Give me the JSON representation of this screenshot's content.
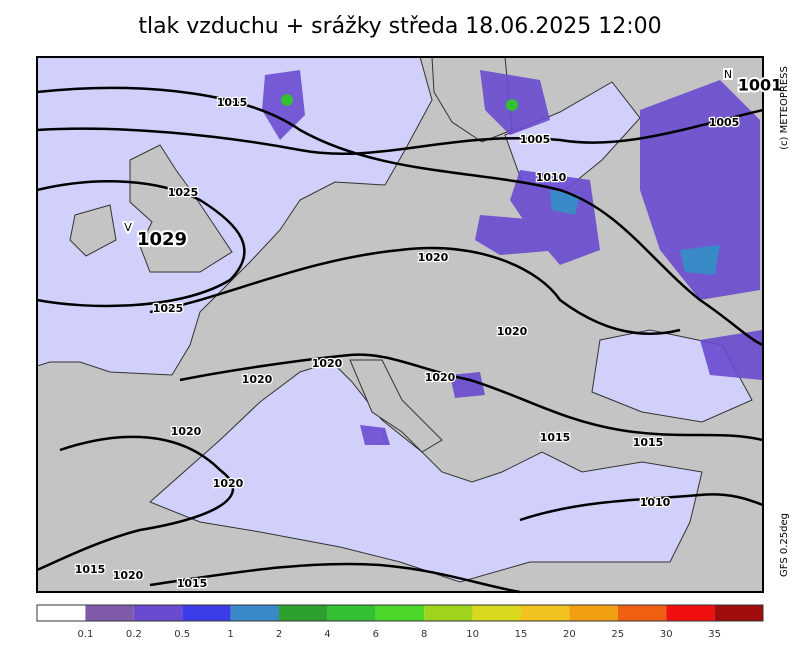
{
  "title": "tlak vzduchu + srážky  středa 18.06.2025 12:00",
  "credit": "(c) METEOPRESS",
  "model": "GFS 0.25deg",
  "pressure_centers": [
    {
      "symbol": "V",
      "value": "1029"
    },
    {
      "symbol": "N",
      "value": "1001"
    }
  ],
  "isobar_labels": [
    "1015",
    "1025",
    "1025",
    "1020",
    "1020",
    "1020",
    "1020",
    "1020",
    "1020",
    "1020",
    "1015",
    "1015",
    "1010",
    "1005",
    "1010",
    "1005",
    "1015",
    "1020",
    "1015"
  ],
  "legend": {
    "colors": [
      "#ffffff",
      "#7e5aa8",
      "#6a4bd0",
      "#3c3ce8",
      "#3a8ac8",
      "#2ea02e",
      "#34c034",
      "#4cd82a",
      "#a0d41c",
      "#d8d81c",
      "#f2c21e",
      "#f2a012",
      "#f06012",
      "#f01010",
      "#a00c0c"
    ],
    "labels": [
      "0.1",
      "0.2",
      "0.5",
      "1",
      "2",
      "4",
      "6",
      "8",
      "10",
      "15",
      "20",
      "25",
      "30",
      "35"
    ]
  }
}
